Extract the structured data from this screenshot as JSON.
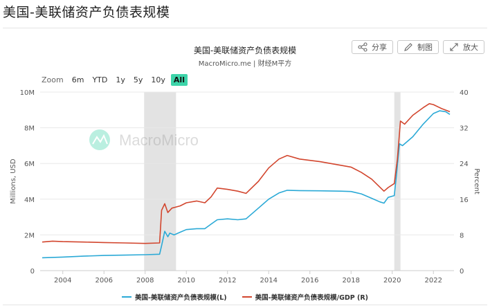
{
  "page": {
    "title": "美国-美联储资产负债表规模"
  },
  "toolbar": {
    "share_label": "分享",
    "image_label": "制图",
    "expand_label": "放大"
  },
  "chart_header": {
    "title": "美国-美联储资产负债表规模",
    "subtitle": "MacroMicro.me | 财经M平方"
  },
  "zoom": {
    "label": "Zoom",
    "options": [
      "6m",
      "YTD",
      "1y",
      "5y",
      "10y",
      "All"
    ],
    "active": "All"
  },
  "watermark": "MacroMicro",
  "colors": {
    "series_l": "#2aa9d6",
    "series_r": "#d2452d",
    "recession": "#e3e3e3",
    "accent": "#3dd4a9"
  },
  "chart_data": {
    "type": "line",
    "x_ticks": [
      "2004",
      "2006",
      "2008",
      "2010",
      "2012",
      "2014",
      "2016",
      "2018",
      "2020",
      "2022"
    ],
    "x_range": [
      2002.9,
      2023.0
    ],
    "y_left": {
      "label": "Millions, USD",
      "ticks": [
        "0",
        "2M",
        "4M",
        "6M",
        "8M",
        "10M"
      ],
      "range": [
        0,
        10000000
      ]
    },
    "y_right": {
      "label": "Percent",
      "ticks": [
        "0",
        "8",
        "16",
        "24",
        "32",
        "40"
      ],
      "range": [
        0,
        40
      ]
    },
    "recessions": [
      [
        2007.95,
        2009.5
      ],
      [
        2020.1,
        2020.4
      ]
    ],
    "series": [
      {
        "name": "美国-美联储资产负债表规模(L)",
        "axis": "left",
        "points": [
          [
            2003.0,
            720000
          ],
          [
            2004.0,
            760000
          ],
          [
            2005.0,
            810000
          ],
          [
            2006.0,
            850000
          ],
          [
            2007.0,
            870000
          ],
          [
            2008.0,
            890000
          ],
          [
            2008.7,
            920000
          ],
          [
            2008.8,
            1400000
          ],
          [
            2008.95,
            2200000
          ],
          [
            2009.1,
            1900000
          ],
          [
            2009.2,
            2100000
          ],
          [
            2009.4,
            2000000
          ],
          [
            2009.7,
            2150000
          ],
          [
            2010.0,
            2300000
          ],
          [
            2010.5,
            2350000
          ],
          [
            2010.9,
            2350000
          ],
          [
            2011.2,
            2600000
          ],
          [
            2011.5,
            2850000
          ],
          [
            2012.0,
            2900000
          ],
          [
            2012.5,
            2850000
          ],
          [
            2012.9,
            2900000
          ],
          [
            2013.5,
            3500000
          ],
          [
            2014.0,
            4000000
          ],
          [
            2014.5,
            4350000
          ],
          [
            2014.9,
            4500000
          ],
          [
            2015.5,
            4480000
          ],
          [
            2016.5,
            4470000
          ],
          [
            2017.5,
            4450000
          ],
          [
            2018.0,
            4430000
          ],
          [
            2018.5,
            4300000
          ],
          [
            2019.0,
            4050000
          ],
          [
            2019.4,
            3850000
          ],
          [
            2019.6,
            3780000
          ],
          [
            2019.8,
            4100000
          ],
          [
            2020.1,
            4200000
          ],
          [
            2020.2,
            5300000
          ],
          [
            2020.35,
            7100000
          ],
          [
            2020.5,
            7000000
          ],
          [
            2021.0,
            7500000
          ],
          [
            2021.5,
            8200000
          ],
          [
            2022.0,
            8800000
          ],
          [
            2022.3,
            8950000
          ],
          [
            2022.6,
            8900000
          ],
          [
            2022.8,
            8750000
          ]
        ]
      },
      {
        "name": "美国-美联储资产负债表规模/GDP (R)",
        "axis": "right",
        "points": [
          [
            2003.0,
            6.4
          ],
          [
            2003.5,
            6.6
          ],
          [
            2004.0,
            6.5
          ],
          [
            2005.0,
            6.4
          ],
          [
            2006.0,
            6.3
          ],
          [
            2007.0,
            6.2
          ],
          [
            2008.0,
            6.1
          ],
          [
            2008.7,
            6.2
          ],
          [
            2008.8,
            13.5
          ],
          [
            2008.95,
            15.0
          ],
          [
            2009.1,
            13.0
          ],
          [
            2009.3,
            14.0
          ],
          [
            2009.7,
            14.5
          ],
          [
            2010.0,
            15.2
          ],
          [
            2010.5,
            15.6
          ],
          [
            2010.9,
            15.2
          ],
          [
            2011.2,
            16.5
          ],
          [
            2011.5,
            18.5
          ],
          [
            2012.0,
            18.2
          ],
          [
            2012.5,
            17.8
          ],
          [
            2012.9,
            17.3
          ],
          [
            2013.5,
            20.0
          ],
          [
            2014.0,
            23.0
          ],
          [
            2014.5,
            25.0
          ],
          [
            2014.9,
            25.8
          ],
          [
            2015.5,
            25.0
          ],
          [
            2016.5,
            24.4
          ],
          [
            2017.5,
            23.6
          ],
          [
            2018.0,
            23.2
          ],
          [
            2018.5,
            22.0
          ],
          [
            2019.0,
            20.5
          ],
          [
            2019.4,
            18.7
          ],
          [
            2019.6,
            17.8
          ],
          [
            2019.8,
            18.6
          ],
          [
            2020.1,
            19.5
          ],
          [
            2020.25,
            25.0
          ],
          [
            2020.4,
            33.5
          ],
          [
            2020.6,
            32.8
          ],
          [
            2021.0,
            34.8
          ],
          [
            2021.5,
            36.5
          ],
          [
            2021.8,
            37.4
          ],
          [
            2022.0,
            37.2
          ],
          [
            2022.4,
            36.3
          ],
          [
            2022.8,
            35.6
          ]
        ]
      }
    ]
  }
}
